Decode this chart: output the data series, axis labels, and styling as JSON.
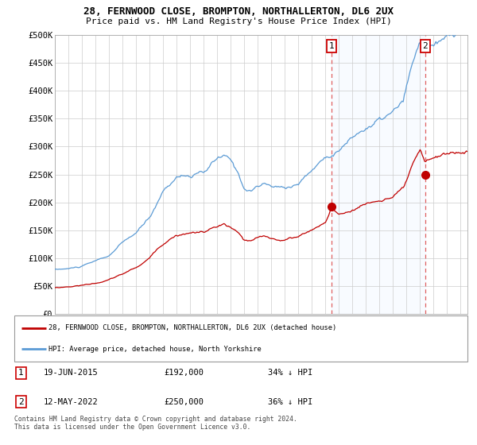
{
  "title1": "28, FERNWOOD CLOSE, BROMPTON, NORTHALLERTON, DL6 2UX",
  "title2": "Price paid vs. HM Land Registry's House Price Index (HPI)",
  "xlim": [
    1995.0,
    2025.5
  ],
  "ylim": [
    0,
    500000
  ],
  "yticks": [
    0,
    50000,
    100000,
    150000,
    200000,
    250000,
    300000,
    350000,
    400000,
    450000,
    500000
  ],
  "ytick_labels": [
    "£0",
    "£50K",
    "£100K",
    "£150K",
    "£200K",
    "£250K",
    "£300K",
    "£350K",
    "£400K",
    "£450K",
    "£500K"
  ],
  "hpi_color": "#5b9bd5",
  "price_color": "#c00000",
  "vline_color": "#e06060",
  "fill_color": "#ddeeff",
  "grid_color": "#cccccc",
  "bg_color": "#ffffff",
  "sale1_date": 2015.46,
  "sale1_price": 192000,
  "sale1_hpi_pct": "34%",
  "sale1_text": "19-JUN-2015",
  "sale2_date": 2022.37,
  "sale2_price": 250000,
  "sale2_hpi_pct": "36%",
  "sale2_text": "12-MAY-2022",
  "legend_line1": "28, FERNWOOD CLOSE, BROMPTON, NORTHALLERTON, DL6 2UX (detached house)",
  "legend_line2": "HPI: Average price, detached house, North Yorkshire",
  "footer": "Contains HM Land Registry data © Crown copyright and database right 2024.\nThis data is licensed under the Open Government Licence v3.0."
}
